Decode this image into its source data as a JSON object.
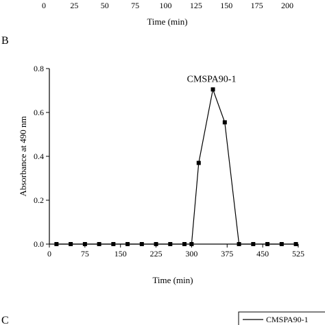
{
  "panel_a_fragment": {
    "xticks": [
      "0",
      "25",
      "50",
      "75",
      "100",
      "125",
      "150",
      "175",
      "200"
    ],
    "xlabel": "Time (min)"
  },
  "panel_b": {
    "letter": "B"
  },
  "panel_c_fragment": {
    "letter": "C",
    "legend_label": "CMSPA90-1"
  },
  "chart_data": [
    {
      "type": "line",
      "title": "",
      "xlabel": "Time (min)",
      "ylabel": "Absorbance at 490 nm",
      "xlim": [
        0,
        525
      ],
      "ylim": [
        0,
        0.8
      ],
      "xticks": [
        0,
        75,
        150,
        225,
        300,
        375,
        450,
        525
      ],
      "yticks": [
        0.0,
        0.2,
        0.4,
        0.6,
        0.8
      ],
      "ytick_labels": [
        "0.0",
        "0.2",
        "0.4",
        "0.6",
        "0.8"
      ],
      "grid": false,
      "annotations": [
        {
          "text": "CMSPA90-1",
          "x": 345,
          "y": 0.705
        }
      ],
      "series": [
        {
          "marker": "square",
          "color": "#000000",
          "x": [
            15,
            45,
            75,
            105,
            135,
            165,
            195,
            225,
            255,
            285,
            300,
            315,
            345,
            370,
            400,
            430,
            460,
            490,
            520
          ],
          "y": [
            0,
            0,
            0,
            0,
            0,
            0,
            0,
            0,
            0,
            0,
            0,
            0.37,
            0.705,
            0.555,
            0,
            0,
            0,
            0,
            0
          ]
        }
      ]
    }
  ]
}
